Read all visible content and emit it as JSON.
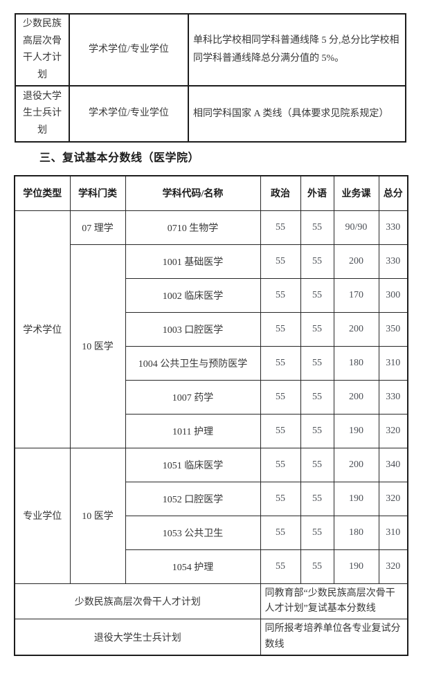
{
  "top_table": {
    "rows": [
      {
        "plan": "少数民族高层次骨干人才计划",
        "degree": "学术学位/专业学位",
        "policy": "单科比学校相同学科普通线降 5 分,总分比学校相同学科普通线降总分满分值的 5%。"
      },
      {
        "plan": "退役大学生士兵计划",
        "degree": "学术学位/专业学位",
        "policy": "相同学科国家 A 类线（具体要求见院系规定）"
      }
    ]
  },
  "section": {
    "heading": "三、复试基本分数线（医学院）"
  },
  "score_table": {
    "headers": [
      "学位类型",
      "学科门类",
      "学科代码/名称",
      "政治",
      "外语",
      "业务课",
      "总分"
    ],
    "groups": [
      {
        "degree_type": "学术学位",
        "categories": [
          {
            "category": "07 理学",
            "rows": [
              {
                "name": "0710 生物学",
                "politics": "55",
                "foreign": "55",
                "business": "90/90",
                "total": "330"
              }
            ]
          },
          {
            "category": "10 医学",
            "rows": [
              {
                "name": "1001 基础医学",
                "politics": "55",
                "foreign": "55",
                "business": "200",
                "total": "330"
              },
              {
                "name": "1002 临床医学",
                "politics": "55",
                "foreign": "55",
                "business": "170",
                "total": "300"
              },
              {
                "name": "1003 口腔医学",
                "politics": "55",
                "foreign": "55",
                "business": "200",
                "total": "350"
              },
              {
                "name": "1004 公共卫生与预防医学",
                "politics": "55",
                "foreign": "55",
                "business": "180",
                "total": "310"
              },
              {
                "name": "1007 药学",
                "politics": "55",
                "foreign": "55",
                "business": "200",
                "total": "330"
              },
              {
                "name": "1011 护理",
                "politics": "55",
                "foreign": "55",
                "business": "190",
                "total": "320"
              }
            ]
          }
        ]
      },
      {
        "degree_type": "专业学位",
        "categories": [
          {
            "category": "10 医学",
            "rows": [
              {
                "name": "1051 临床医学",
                "politics": "55",
                "foreign": "55",
                "business": "200",
                "total": "340"
              },
              {
                "name": "1052 口腔医学",
                "politics": "55",
                "foreign": "55",
                "business": "190",
                "total": "320"
              },
              {
                "name": "1053 公共卫生",
                "politics": "55",
                "foreign": "55",
                "business": "180",
                "total": "310"
              },
              {
                "name": "1054 护理",
                "politics": "55",
                "foreign": "55",
                "business": "190",
                "total": "320"
              }
            ]
          }
        ]
      }
    ],
    "special_rows": [
      {
        "plan": "少数民族高层次骨干人才计划",
        "policy": "同教育部“少数民族高层次骨干人才计划”复试基本分数线"
      },
      {
        "plan": "退役大学生士兵计划",
        "policy": "同所报考培养单位各专业复试分数线"
      }
    ]
  }
}
